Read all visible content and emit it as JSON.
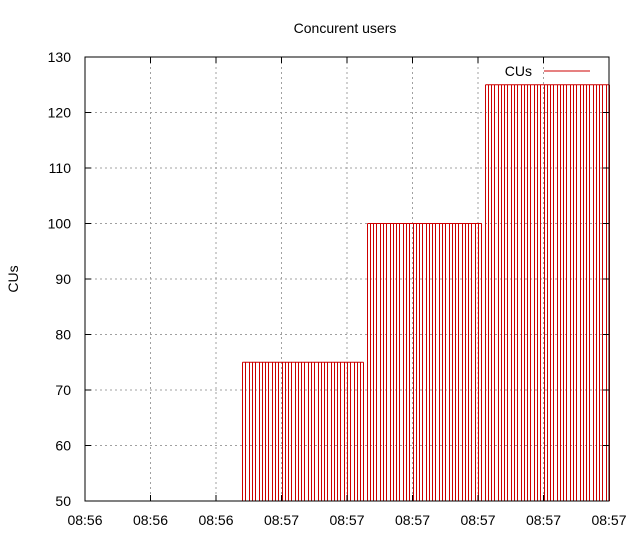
{
  "chart_data": {
    "type": "impulse",
    "title": "Concurent users",
    "xlabel": "",
    "ylabel": "CUs",
    "ylim": [
      50,
      130
    ],
    "y_ticks": [
      50,
      60,
      70,
      80,
      90,
      100,
      110,
      120,
      130
    ],
    "x_tick_labels": [
      "08:56",
      "08:56",
      "08:56",
      "08:57",
      "08:57",
      "08:57",
      "08:57",
      "08:57",
      "08:57"
    ],
    "grid": true,
    "legend": "top-right",
    "series": [
      {
        "name": "CUs",
        "color": "#cc0000",
        "x_range": [
          0,
          160
        ],
        "segments": [
          {
            "x_start": 48,
            "x_end": 85,
            "value": 75
          },
          {
            "x_start": 86,
            "x_end": 121,
            "value": 100
          },
          {
            "x_start": 122,
            "x_end": 160,
            "value": 125
          }
        ]
      }
    ]
  }
}
